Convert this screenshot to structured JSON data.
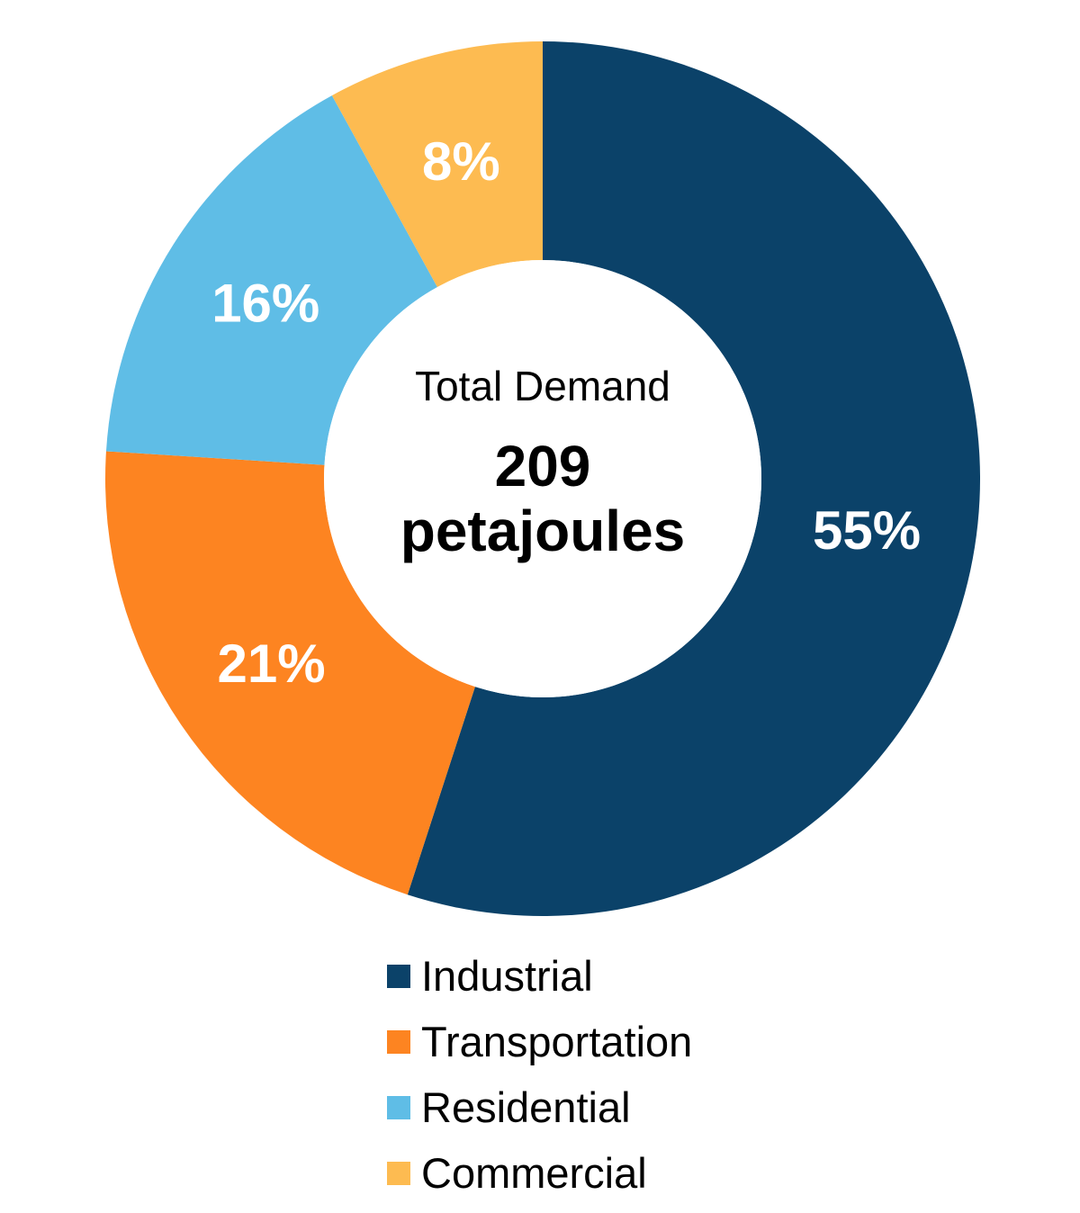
{
  "chart_data": {
    "type": "pie",
    "subtype": "donut",
    "title": "",
    "center_label": "Total Demand",
    "center_value": "209 petajoules",
    "total": 209,
    "unit": "petajoules",
    "categories": [
      "Industrial",
      "Transportation",
      "Residential",
      "Commercial"
    ],
    "values": [
      55,
      21,
      16,
      8
    ],
    "labels": [
      "55%",
      "21%",
      "16%",
      "8%"
    ],
    "colors": [
      "#0b4269",
      "#fd8421",
      "#5fbde6",
      "#fdbb51"
    ],
    "legend_position": "bottom"
  },
  "center": {
    "title": "Total Demand",
    "value_line1": "209",
    "value_line2": "petajoules"
  },
  "legend": [
    {
      "label": "Industrial",
      "color": "#0b4269"
    },
    {
      "label": "Transportation",
      "color": "#fd8421"
    },
    {
      "label": "Residential",
      "color": "#5fbde6"
    },
    {
      "label": "Commercial",
      "color": "#fdbb51"
    }
  ],
  "slice_labels": [
    "55%",
    "21%",
    "16%",
    "8%"
  ]
}
